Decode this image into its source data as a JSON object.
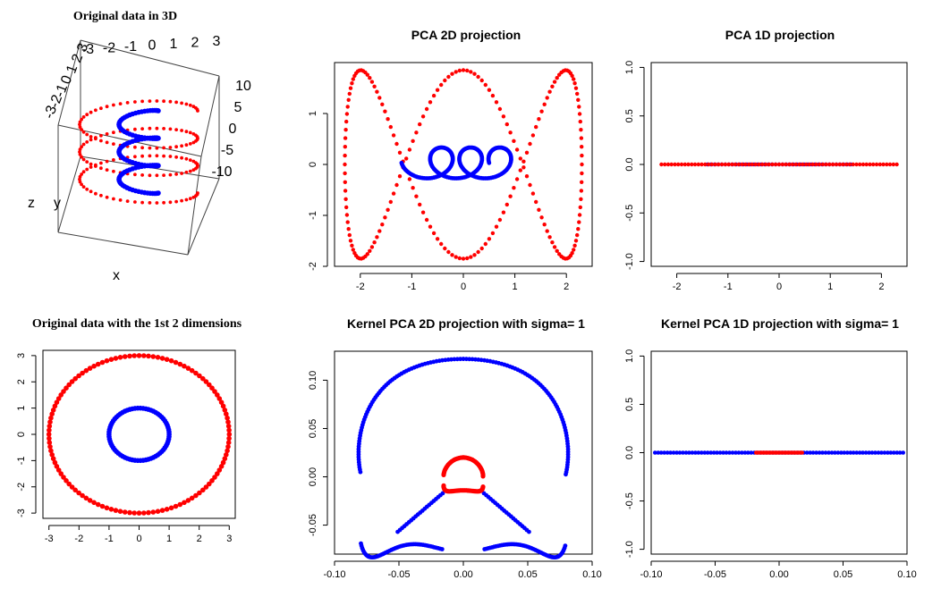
{
  "colors": {
    "outer": "#ff0000",
    "inner": "#0000ff"
  },
  "chart_data": [
    {
      "id": "orig3d",
      "type": "scatter",
      "title": "Original data in 3D",
      "axis_labels": [
        "x",
        "y",
        "z"
      ],
      "top_ticks": [
        "-3",
        "-2",
        "-1",
        "0",
        "1",
        "2",
        "3"
      ],
      "right_ticks": [
        "10",
        "5",
        "0",
        "-5",
        "-10"
      ],
      "left_ticks": [
        "3",
        "2",
        "1",
        "0",
        "-1",
        "-2",
        "-3"
      ],
      "series": [
        {
          "color": "outer",
          "shape": "helix",
          "radius": 3,
          "turns": 3,
          "z_range": [
            -10,
            10
          ]
        },
        {
          "color": "inner",
          "shape": "helix",
          "radius": 1,
          "turns": 3,
          "z_range": [
            -10,
            10
          ]
        }
      ]
    },
    {
      "id": "pca2d",
      "type": "scatter",
      "title": "PCA 2D projection",
      "xlim": [
        -2.5,
        2.5
      ],
      "ylim": [
        -2.0,
        2.0
      ],
      "xticks": [
        "-2",
        "-1",
        "0",
        "1",
        "2"
      ],
      "xtick_values": [
        -2,
        -1,
        0,
        1,
        2
      ],
      "yticks": [
        "-2",
        "-1",
        "0",
        "1"
      ],
      "ytick_values": [
        -2,
        -1,
        0,
        1
      ],
      "series": [
        {
          "color": "outer",
          "curve": "lissajous",
          "amp_x": 2.3,
          "amp_y": 1.85,
          "freq": 3
        },
        {
          "color": "inner",
          "curve": "loops",
          "amp_x": 1.2,
          "amp_y": 0.55,
          "loops": 3
        }
      ]
    },
    {
      "id": "pca1d",
      "type": "scatter",
      "title": "PCA 1D projection",
      "xlim": [
        -2.5,
        2.5
      ],
      "ylim": [
        -1.05,
        1.05
      ],
      "xticks": [
        "-2",
        "-1",
        "0",
        "1",
        "2"
      ],
      "xtick_values": [
        -2,
        -1,
        0,
        1,
        2
      ],
      "yticks": [
        "-1.0",
        "-0.5",
        "0.0",
        "0.5",
        "1.0"
      ],
      "ytick_values": [
        -1.0,
        -0.5,
        0.0,
        0.5,
        1.0
      ],
      "series": [
        {
          "color": "inner",
          "x_range": [
            -1.4,
            1.4
          ],
          "y": 0
        },
        {
          "color": "outer",
          "x_range": [
            -2.3,
            2.3
          ],
          "y": 0
        }
      ]
    },
    {
      "id": "orig2d",
      "type": "scatter",
      "title": "Original data with the 1st 2 dimensions",
      "xlim": [
        -3.2,
        3.2
      ],
      "ylim": [
        -3.2,
        3.2
      ],
      "xticks": [
        "-3",
        "-2",
        "-1",
        "0",
        "1",
        "2",
        "3"
      ],
      "xtick_values": [
        -3,
        -2,
        -1,
        0,
        1,
        2,
        3
      ],
      "yticks": [
        "-3",
        "-2",
        "-1",
        "0",
        "1",
        "2",
        "3"
      ],
      "ytick_values": [
        -3,
        -2,
        -1,
        0,
        1,
        2,
        3
      ],
      "series": [
        {
          "color": "outer",
          "circle_radius": 3
        },
        {
          "color": "inner",
          "circle_radius": 1
        }
      ]
    },
    {
      "id": "kpca2d",
      "type": "scatter",
      "title": "Kernel PCA 2D projection with sigma= 1",
      "xlim": [
        -0.1,
        0.1
      ],
      "ylim": [
        -0.08,
        0.13
      ],
      "xticks": [
        "-0.10",
        "-0.05",
        "0.00",
        "0.05",
        "0.10"
      ],
      "xtick_values": [
        -0.1,
        -0.05,
        0.0,
        0.05,
        0.1
      ],
      "yticks": [
        "-0.05",
        "0.00",
        "0.05",
        "0.10"
      ],
      "ytick_values": [
        -0.05,
        0.0,
        0.05,
        0.1
      ],
      "series": [
        {
          "color": "inner",
          "shape": "outer-heart",
          "scale_x": 0.097,
          "top": 0.122,
          "bottom": -0.077,
          "gap_x": 0.016
        },
        {
          "color": "outer",
          "shape": "inner-heart",
          "scale_x": 0.017,
          "top": 0.02,
          "bottom": -0.015
        }
      ]
    },
    {
      "id": "kpca1d",
      "type": "scatter",
      "title": "Kernel PCA 1D projection with sigma= 1",
      "xlim": [
        -0.1,
        0.1
      ],
      "ylim": [
        -1.05,
        1.05
      ],
      "xticks": [
        "-0.10",
        "-0.05",
        "0.00",
        "0.05",
        "0.10"
      ],
      "xtick_values": [
        -0.1,
        -0.05,
        0.0,
        0.05,
        0.1
      ],
      "yticks": [
        "-1.0",
        "-0.5",
        "0.0",
        "0.5",
        "1.0"
      ],
      "ytick_values": [
        -1.0,
        -0.5,
        0.0,
        0.5,
        1.0
      ],
      "series": [
        {
          "color": "inner",
          "x_range": [
            -0.097,
            0.097
          ],
          "y": 0
        },
        {
          "color": "outer",
          "x_range": [
            -0.018,
            0.018
          ],
          "y": 0
        }
      ]
    }
  ]
}
